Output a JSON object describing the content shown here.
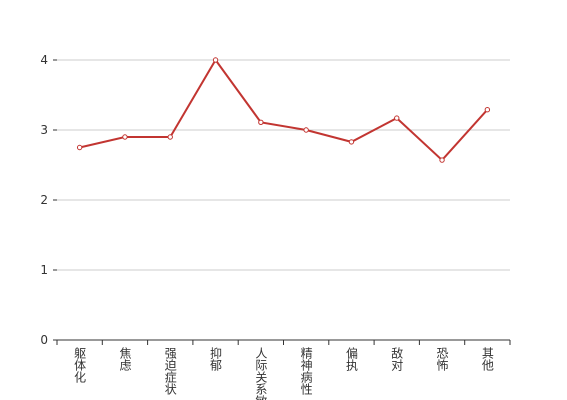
{
  "chart_data": {
    "type": "line",
    "categories": [
      "躯体化",
      "焦虑",
      "强迫症状",
      "抑郁",
      "人际关系敏感",
      "精神病性",
      "偏执",
      "敌对",
      "恐怖",
      "其他"
    ],
    "values": [
      2.75,
      2.9,
      2.9,
      4.0,
      3.11,
      3.0,
      2.83,
      3.17,
      2.57,
      3.29
    ],
    "color": "#c23531",
    "ylim": [
      0,
      4
    ],
    "yticks": [
      0,
      1,
      2,
      3,
      4
    ],
    "grid": true
  }
}
